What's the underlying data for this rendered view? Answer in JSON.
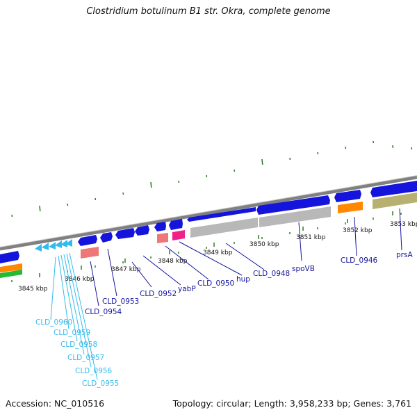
{
  "title": "Clostridium botulinum B1 str. Okra, complete genome",
  "footer": {
    "accession": "Accession: NC_010516",
    "topology": "Topology: circular; Length: 3,958,233 bp; Genes: 3,761"
  },
  "scale_labels": [
    "3845 kbp",
    "3846 kbp",
    "3847 kbp",
    "3848 kbp",
    "3849 kbp",
    "3850 kbp",
    "3851 kbp",
    "3852 kbp",
    "3853 kbp"
  ],
  "gene_labels": [
    "CLD_0960",
    "CLD_0959",
    "CLD_0958",
    "CLD_0957",
    "CLD_0956",
    "CLD_0955",
    "CLD_0954",
    "CLD_0953",
    "CLD_0952",
    "yabP",
    "CLD_0950",
    "hup",
    "CLD_0948",
    "spoVB",
    "CLD_0946",
    "prsA"
  ],
  "colors": {
    "cds": "#1414dc",
    "trna": "#33bbee",
    "rrna_pink": "#ee7777",
    "magenta": "#ee2288",
    "grey_feature": "#b8b8b8",
    "orange": "#ff8800",
    "olive": "#b8b070",
    "tick": "#2a7a22",
    "backbone": "#909090",
    "label_blue": "#1414a0",
    "label_cyan": "#33bbee"
  }
}
